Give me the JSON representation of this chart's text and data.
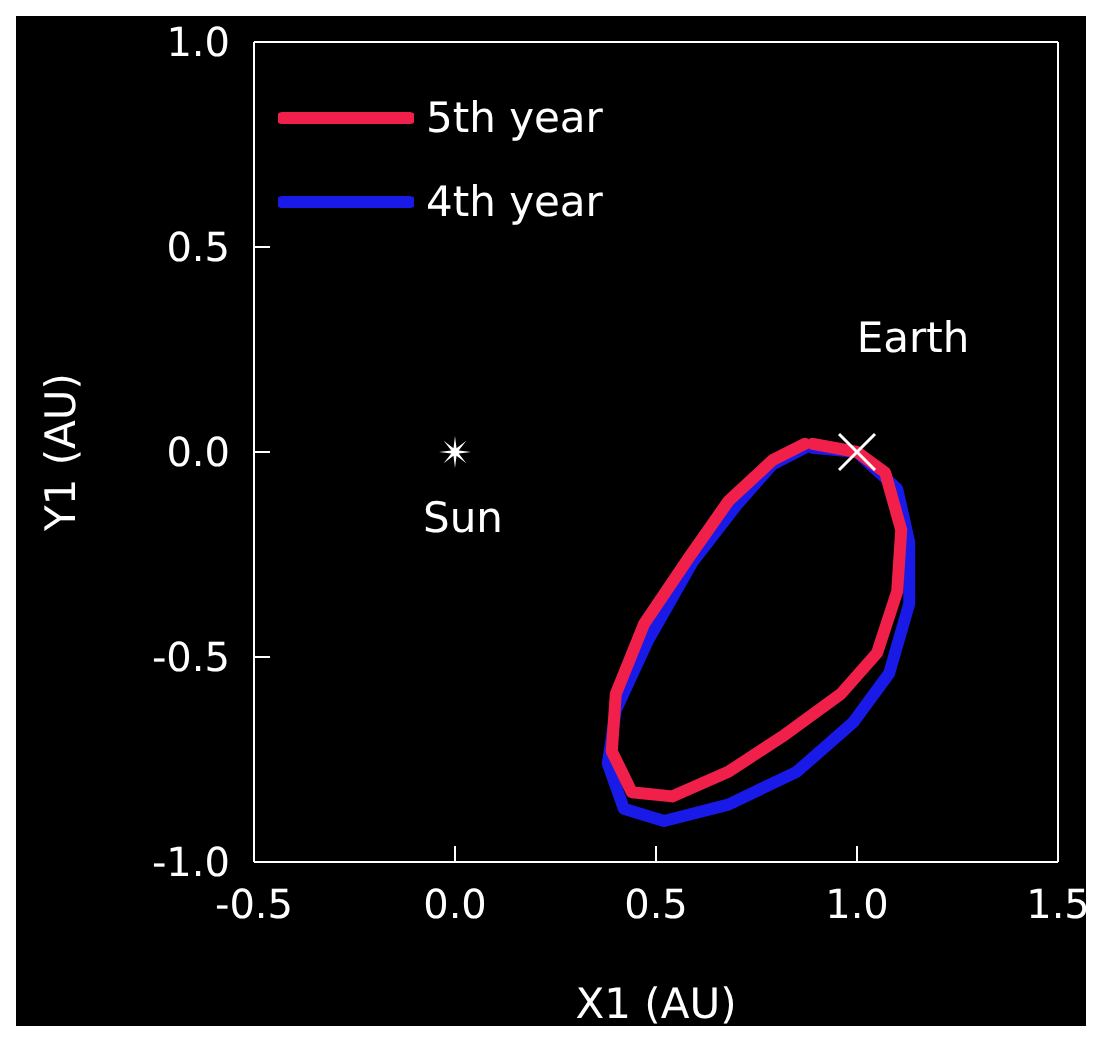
{
  "chart_data": {
    "type": "line",
    "xlabel": "X1 (AU)",
    "ylabel": "Y1 (AU)",
    "xlim": [
      -0.5,
      1.5
    ],
    "ylim": [
      -1.0,
      1.0
    ],
    "xticks": [
      {
        "value": -0.5,
        "label": "-0.5"
      },
      {
        "value": 0,
        "label": "0.0"
      },
      {
        "value": 0.5,
        "label": "0.5"
      },
      {
        "value": 1,
        "label": "1.0"
      },
      {
        "value": 1.5,
        "label": "1.5"
      }
    ],
    "yticks": [
      {
        "value": -1,
        "label": "-1.0"
      },
      {
        "value": -0.5,
        "label": "-0.5"
      },
      {
        "value": 0,
        "label": "0.0"
      },
      {
        "value": 0.5,
        "label": "0.5"
      },
      {
        "value": 1,
        "label": "1.0"
      }
    ],
    "grid": false,
    "legend": "top left",
    "marker": "none",
    "line_style": "solid",
    "series": [
      {
        "name": "4th year",
        "color": "#1a1ae8",
        "x": [
          0.89,
          1.0,
          1.1,
          1.13,
          1.13,
          1.08,
          0.99,
          0.85,
          0.68,
          0.52,
          0.42,
          0.38,
          0.4,
          0.48,
          0.59,
          0.7,
          0.79,
          0.87
        ],
        "values": [
          0.01,
          0.0,
          -0.09,
          -0.22,
          -0.37,
          -0.54,
          -0.66,
          -0.78,
          -0.86,
          -0.9,
          -0.87,
          -0.76,
          -0.63,
          -0.46,
          -0.27,
          -0.13,
          -0.03,
          0.01
        ]
      },
      {
        "name": "5th year",
        "color": "#f0204a",
        "x": [
          0.89,
          1.0,
          1.07,
          1.11,
          1.1,
          1.05,
          0.96,
          0.82,
          0.68,
          0.54,
          0.44,
          0.39,
          0.4,
          0.47,
          0.58,
          0.68,
          0.79,
          0.87
        ],
        "values": [
          0.02,
          0.0,
          -0.05,
          -0.19,
          -0.34,
          -0.49,
          -0.59,
          -0.69,
          -0.78,
          -0.84,
          -0.83,
          -0.73,
          -0.59,
          -0.42,
          -0.26,
          -0.12,
          -0.02,
          0.02
        ]
      },
      {
        "type": "scatter",
        "marker": "star",
        "color": "#ffffff",
        "x": [
          0
        ],
        "values": [
          0
        ]
      },
      {
        "type": "scatter",
        "marker": "cross",
        "color": "#ffffff",
        "x": [
          1
        ],
        "values": [
          0
        ]
      }
    ],
    "annotations": [
      {
        "text": "Sun",
        "x": 0,
        "y": 0
      },
      {
        "text": "Earth",
        "x": 1,
        "y": 0
      }
    ]
  }
}
